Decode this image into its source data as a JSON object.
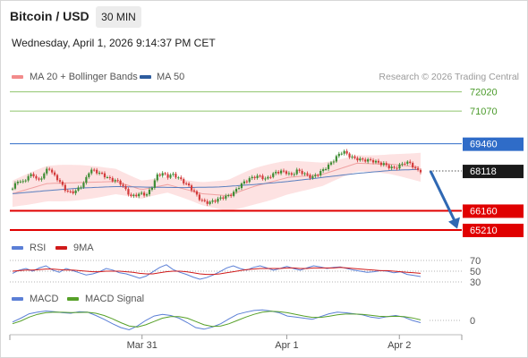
{
  "header": {
    "title": "Bitcoin / USD",
    "interval": "30 MIN",
    "datetime": "Wednesday, April 1, 2026 9:14:37 PM CET"
  },
  "legend_main": [
    {
      "label": "MA 20 + Bollinger Bands",
      "color": "#f28b8b"
    },
    {
      "label": "MA 50",
      "color": "#2d5c9e"
    }
  ],
  "credit": "Research © 2026 Trading Central",
  "colors": {
    "up": "#3d8c33",
    "down": "#d33a3a",
    "ma20": "#f0a0a0",
    "bollinger": "#fde2e2",
    "ma50": "#5a7fbf",
    "resistance_green": "#8fc46b",
    "pivot_blue": "#2f6cc8",
    "support_red": "#e00000",
    "price_tag": "#1a1a1a",
    "arrow": "#2f68b3",
    "rsi": "#5b7fd6",
    "rsi_ma": "#d01a1a",
    "macd": "#5b7fd6",
    "macd_signal": "#56a028"
  },
  "legend_rsi": [
    {
      "label": "RSI",
      "color": "#5b7fd6"
    },
    {
      "label": "9MA",
      "color": "#d01a1a"
    }
  ],
  "legend_macd": [
    {
      "label": "MACD",
      "color": "#5b7fd6"
    },
    {
      "label": "MACD Signal",
      "color": "#56a028"
    }
  ],
  "chart_data": [
    {
      "type": "line",
      "subtype": "candlestick",
      "title": "",
      "ylim": [
        64900,
        72400
      ],
      "levels": [
        {
          "value": 72020,
          "label": "72020",
          "kind": "resistance"
        },
        {
          "value": 71070,
          "label": "71070",
          "kind": "resistance"
        },
        {
          "value": 69460,
          "label": "69460",
          "kind": "pivot"
        },
        {
          "value": 68118,
          "label": "68118",
          "kind": "last-price"
        },
        {
          "value": 66160,
          "label": "66160",
          "kind": "support"
        },
        {
          "value": 65210,
          "label": "65210",
          "kind": "support"
        }
      ],
      "series_points": [
        [
          0,
          67250
        ],
        [
          6,
          67650
        ],
        [
          12,
          67550
        ],
        [
          18,
          67850
        ],
        [
          24,
          67950
        ],
        [
          30,
          67600
        ],
        [
          36,
          67950
        ],
        [
          42,
          68300
        ],
        [
          48,
          67900
        ],
        [
          54,
          67650
        ],
        [
          60,
          67250
        ],
        [
          66,
          67050
        ],
        [
          72,
          67100
        ],
        [
          78,
          67300
        ],
        [
          84,
          67600
        ],
        [
          90,
          68200
        ],
        [
          96,
          68100
        ],
        [
          102,
          68000
        ],
        [
          108,
          67850
        ],
        [
          114,
          67700
        ],
        [
          120,
          67650
        ],
        [
          126,
          67500
        ],
        [
          132,
          67150
        ],
        [
          138,
          66850
        ],
        [
          144,
          66950
        ],
        [
          150,
          67000
        ],
        [
          156,
          66950
        ],
        [
          162,
          67350
        ],
        [
          168,
          67900
        ],
        [
          174,
          68000
        ],
        [
          180,
          67850
        ],
        [
          186,
          67950
        ],
        [
          192,
          67800
        ],
        [
          198,
          67600
        ],
        [
          204,
          67400
        ],
        [
          210,
          67150
        ],
        [
          216,
          66800
        ],
        [
          222,
          66600
        ],
        [
          228,
          66550
        ],
        [
          234,
          66650
        ],
        [
          240,
          66750
        ],
        [
          246,
          66850
        ],
        [
          252,
          66900
        ],
        [
          258,
          67100
        ],
        [
          264,
          67400
        ],
        [
          270,
          67600
        ],
        [
          276,
          67750
        ],
        [
          282,
          67850
        ],
        [
          288,
          67850
        ],
        [
          294,
          67700
        ],
        [
          300,
          67900
        ],
        [
          306,
          68050
        ],
        [
          312,
          68100
        ],
        [
          318,
          68050
        ],
        [
          324,
          67900
        ],
        [
          330,
          68150
        ],
        [
          336,
          68050
        ],
        [
          342,
          67900
        ],
        [
          348,
          67800
        ],
        [
          354,
          67950
        ],
        [
          360,
          68150
        ],
        [
          366,
          68350
        ],
        [
          372,
          68600
        ],
        [
          378,
          68900
        ],
        [
          384,
          69100
        ],
        [
          390,
          68900
        ],
        [
          396,
          68750
        ],
        [
          402,
          68700
        ],
        [
          408,
          68650
        ],
        [
          414,
          68650
        ],
        [
          420,
          68600
        ],
        [
          426,
          68500
        ],
        [
          432,
          68450
        ],
        [
          438,
          68300
        ],
        [
          444,
          68250
        ],
        [
          450,
          68400
        ],
        [
          456,
          68550
        ],
        [
          462,
          68500
        ],
        [
          468,
          68200
        ],
        [
          474,
          68118
        ]
      ],
      "ma20_points": [
        [
          0,
          67000
        ],
        [
          40,
          67500
        ],
        [
          80,
          67550
        ],
        [
          120,
          67600
        ],
        [
          150,
          67200
        ],
        [
          180,
          67450
        ],
        [
          220,
          67000
        ],
        [
          250,
          66900
        ],
        [
          280,
          67350
        ],
        [
          320,
          67800
        ],
        [
          360,
          67950
        ],
        [
          400,
          68500
        ],
        [
          440,
          68450
        ],
        [
          474,
          68300
        ]
      ],
      "ma50_points": [
        [
          0,
          67000
        ],
        [
          40,
          67150
        ],
        [
          80,
          67280
        ],
        [
          120,
          67350
        ],
        [
          160,
          67320
        ],
        [
          200,
          67300
        ],
        [
          240,
          67330
        ],
        [
          280,
          67450
        ],
        [
          320,
          67600
        ],
        [
          360,
          67800
        ],
        [
          400,
          68000
        ],
        [
          440,
          68150
        ],
        [
          474,
          68200
        ]
      ],
      "forecast_arrow": {
        "from": 68118,
        "to": 65400
      }
    },
    {
      "type": "line",
      "name": "RSI",
      "ylim": [
        25,
        75
      ],
      "levels": [
        {
          "value": 70,
          "label": "70"
        },
        {
          "value": 50,
          "label": "50"
        },
        {
          "value": 30,
          "label": "30"
        }
      ],
      "series": [
        {
          "name": "RSI",
          "values": [
            46,
            52,
            55,
            50,
            56,
            60,
            52,
            48,
            55,
            51,
            47,
            43,
            45,
            49,
            55,
            52,
            47,
            45,
            41,
            37,
            41,
            49,
            57,
            62,
            53,
            48,
            44,
            39,
            35,
            38,
            43,
            49,
            56,
            60,
            55,
            52,
            57,
            60,
            56,
            52,
            55,
            59,
            55,
            52,
            56,
            60,
            58,
            55,
            57,
            58,
            55,
            52,
            50,
            48,
            49,
            51,
            50,
            47,
            49,
            44,
            42,
            40
          ]
        },
        {
          "name": "9MA",
          "values": [
            50,
            51,
            52,
            52,
            53,
            54,
            54,
            53,
            52,
            52,
            51,
            50,
            49,
            49,
            50,
            50,
            50,
            49,
            48,
            46,
            45,
            45,
            47,
            49,
            50,
            50,
            49,
            47,
            45,
            44,
            44,
            45,
            47,
            49,
            51,
            53,
            54,
            55,
            55,
            55,
            55,
            56,
            56,
            55,
            55,
            56,
            56,
            56,
            56,
            57,
            56,
            55,
            54,
            53,
            52,
            51,
            51,
            50,
            49,
            48,
            47,
            46
          ]
        }
      ]
    },
    {
      "type": "line",
      "name": "MACD",
      "ylim": [
        -260,
        260
      ],
      "levels": [
        {
          "value": 0,
          "label": "0"
        }
      ],
      "series": [
        {
          "name": "MACD",
          "values": [
            -30,
            40,
            120,
            150,
            170,
            160,
            140,
            130,
            160,
            150,
            90,
            20,
            -60,
            -130,
            -170,
            -100,
            0,
            80,
            110,
            90,
            40,
            -40,
            -130,
            -160,
            -120,
            -60,
            30,
            110,
            150,
            180,
            190,
            170,
            140,
            80,
            60,
            40,
            20,
            70,
            120,
            150,
            140,
            120,
            100,
            60,
            40,
            70,
            90,
            60,
            0,
            -40
          ]
        },
        {
          "name": "MACD Signal",
          "values": [
            -60,
            -10,
            60,
            110,
            140,
            150,
            148,
            142,
            145,
            148,
            130,
            90,
            30,
            -40,
            -100,
            -120,
            -80,
            -20,
            40,
            70,
            70,
            40,
            -20,
            -80,
            -110,
            -100,
            -60,
            0,
            60,
            110,
            150,
            165,
            160,
            140,
            110,
            80,
            55,
            55,
            75,
            100,
            115,
            115,
            110,
            95,
            75,
            70,
            75,
            70,
            45,
            10
          ]
        }
      ]
    }
  ],
  "x_axis": {
    "ticks": [
      {
        "label": "Mar 31",
        "pos": 0.317
      },
      {
        "label": "Apr 1",
        "pos": 0.664
      },
      {
        "label": "Apr 2",
        "pos": 0.934
      }
    ]
  }
}
